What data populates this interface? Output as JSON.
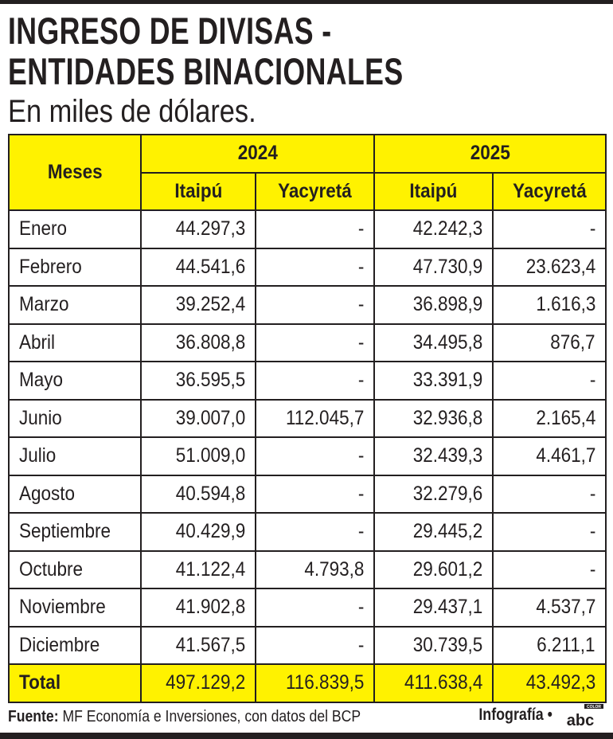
{
  "title_line1": "INGRESO DE DIVISAS -",
  "title_line2": "ENTIDADES BINACIONALES",
  "subtitle": "En miles de dólares.",
  "colors": {
    "header_fill": "#fff200",
    "text": "#231f20"
  },
  "chart_data": {
    "type": "table",
    "header": {
      "months": "Meses",
      "years": [
        "2024",
        "2025"
      ],
      "entities": [
        "Itaipú",
        "Yacyretá",
        "Itaipú",
        "Yacyretá"
      ]
    },
    "rows": [
      [
        "Enero",
        "44.297,3",
        "-",
        "42.242,3",
        "-"
      ],
      [
        "Febrero",
        "44.541,6",
        "-",
        "47.730,9",
        "23.623,4"
      ],
      [
        "Marzo",
        "39.252,4",
        "-",
        "36.898,9",
        "1.616,3"
      ],
      [
        "Abril",
        "36.808,8",
        "-",
        "34.495,8",
        "876,7"
      ],
      [
        "Mayo",
        "36.595,5",
        "-",
        "33.391,9",
        "-"
      ],
      [
        "Junio",
        "39.007,0",
        "112.045,7",
        "32.936,8",
        "2.165,4"
      ],
      [
        "Julio",
        "51.009,0",
        "-",
        "32.439,3",
        "4.461,7"
      ],
      [
        "Agosto",
        "40.594,8",
        "-",
        "32.279,6",
        "-"
      ],
      [
        "Septiembre",
        "40.429,9",
        "-",
        "29.445,2",
        "-"
      ],
      [
        "Octubre",
        "41.122,4",
        "4.793,8",
        "29.601,2",
        "-"
      ],
      [
        "Noviembre",
        "41.902,8",
        "-",
        "29.437,1",
        "4.537,7"
      ],
      [
        "Diciembre",
        "41.567,5",
        "-",
        "30.739,5",
        "6.211,1"
      ]
    ],
    "total": [
      "Total",
      "497.129,2",
      "116.839,5",
      "411.638,4",
      "43.492,3"
    ]
  },
  "footer": {
    "source_label": "Fuente:",
    "source_text": " MF Economía e Inversiones, con datos del BCP",
    "credit": "Infografía •",
    "logo_text": "abc",
    "logo_sub": "COLOR"
  }
}
